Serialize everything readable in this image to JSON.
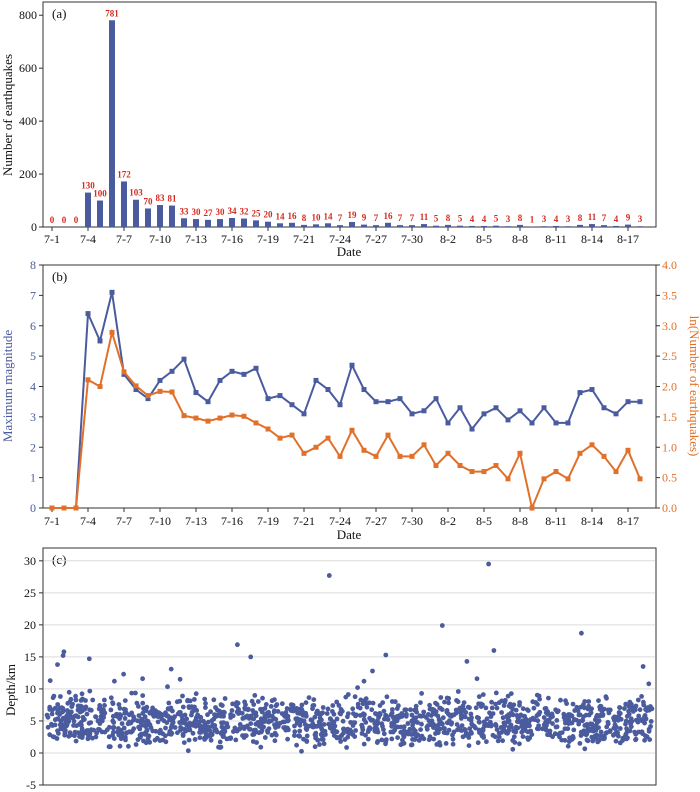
{
  "colors": {
    "blue": "#4a5b9e",
    "orange": "#e0702a",
    "red_label": "#d42a1e",
    "axis": "#333333",
    "text": "#111111"
  },
  "date_ticks": [
    "7-1",
    "7-4",
    "7-7",
    "7-10",
    "7-13",
    "7-16",
    "7-19",
    "7-21",
    "7-24",
    "7-27",
    "7-30",
    "8-2",
    "8-5",
    "8-8",
    "8-11",
    "8-14",
    "8-17"
  ],
  "chart_data": [
    {
      "type": "bar",
      "panel_label": "(a)",
      "title": "",
      "xlabel": "Date",
      "ylabel": "Number of earthquakes",
      "ylim": [
        0,
        850
      ],
      "yticks": [
        "0",
        "200",
        "400",
        "600",
        "800"
      ],
      "values": [
        0,
        0,
        0,
        130,
        100,
        781,
        172,
        103,
        70,
        83,
        81,
        33,
        30,
        27,
        30,
        34,
        32,
        25,
        20,
        14,
        16,
        8,
        10,
        14,
        7,
        19,
        9,
        7,
        16,
        7,
        7,
        11,
        5,
        8,
        5,
        4,
        4,
        5,
        3,
        8,
        1,
        3,
        4,
        3,
        8,
        11,
        7,
        4,
        9,
        3
      ],
      "data_labels": [
        "0",
        "0",
        "0",
        "130",
        "100",
        "781",
        "172",
        "103",
        "70",
        "83",
        "81",
        "33",
        "30",
        "27",
        "30",
        "34",
        "32",
        "25",
        "20",
        "14",
        "16",
        "8",
        "10",
        "14",
        "7",
        "19",
        "9",
        "7",
        "16",
        "7",
        "7",
        "11",
        "5",
        "8",
        "5",
        "4",
        "4",
        "5",
        "3",
        "8",
        "1",
        "3",
        "4",
        "3",
        "8",
        "11",
        "7",
        "4",
        "9",
        "3"
      ]
    },
    {
      "type": "line",
      "panel_label": "(b)",
      "xlabel": "Date",
      "ylabel_left": "Maximum magnitude",
      "ylabel_right": "ln(Number of earthquakes)",
      "ylim_left": [
        0,
        8
      ],
      "ylim_right": [
        0,
        4
      ],
      "yticks_left": [
        "0",
        "1",
        "2",
        "3",
        "4",
        "5",
        "6",
        "7",
        "8"
      ],
      "yticks_right": [
        "0.0",
        "0.5",
        "1.0",
        "1.5",
        "2.0",
        "2.5",
        "3.0",
        "3.5",
        "4.0"
      ],
      "series": [
        {
          "name": "Maximum magnitude",
          "axis": "left",
          "values": [
            0,
            0,
            0,
            6.4,
            5.5,
            7.1,
            4.4,
            3.9,
            3.6,
            4.2,
            4.5,
            4.9,
            3.8,
            3.5,
            4.2,
            4.5,
            4.4,
            4.6,
            3.6,
            3.7,
            3.4,
            3.1,
            4.2,
            3.9,
            3.4,
            4.7,
            3.9,
            3.5,
            3.5,
            3.6,
            3.1,
            3.2,
            3.6,
            2.8,
            3.3,
            2.6,
            3.1,
            3.3,
            2.9,
            3.2,
            2.8,
            3.3,
            2.8,
            2.8,
            3.8,
            3.9,
            3.3,
            3.1,
            3.5,
            3.5
          ]
        },
        {
          "name": "ln(Number of earthquakes)",
          "axis": "right",
          "values": [
            0,
            0,
            0,
            2.11,
            2.0,
            2.89,
            2.24,
            2.01,
            1.85,
            1.92,
            1.91,
            1.52,
            1.48,
            1.43,
            1.48,
            1.53,
            1.51,
            1.4,
            1.3,
            1.15,
            1.2,
            0.9,
            1.0,
            1.15,
            0.85,
            1.28,
            0.95,
            0.85,
            1.2,
            0.85,
            0.85,
            1.04,
            0.7,
            0.9,
            0.7,
            0.6,
            0.6,
            0.7,
            0.48,
            0.9,
            0,
            0.48,
            0.6,
            0.48,
            0.9,
            1.04,
            0.85,
            0.6,
            0.95,
            0.48
          ]
        }
      ]
    },
    {
      "type": "scatter",
      "panel_label": "(c)",
      "ylabel": "Depth/km",
      "ylim": [
        -5,
        32
      ],
      "yticks": [
        "-5",
        "0",
        "5",
        "10",
        "15",
        "20",
        "25",
        "30"
      ],
      "n_points": 1500,
      "x_range": [
        0,
        1500
      ],
      "bulk_depth_range_km": [
        -0.5,
        11
      ],
      "outliers": [
        {
          "x": 8,
          "y": 11.3
        },
        {
          "x": 26,
          "y": 13.8
        },
        {
          "x": 40,
          "y": 15.2
        },
        {
          "x": 42,
          "y": 15.8
        },
        {
          "x": 105,
          "y": 14.7
        },
        {
          "x": 167,
          "y": 11.2
        },
        {
          "x": 190,
          "y": 12.3
        },
        {
          "x": 237,
          "y": 11.6
        },
        {
          "x": 308,
          "y": 13.1
        },
        {
          "x": 330,
          "y": 11.5
        },
        {
          "x": 472,
          "y": 16.9
        },
        {
          "x": 505,
          "y": 15.0
        },
        {
          "x": 700,
          "y": 27.7
        },
        {
          "x": 786,
          "y": 11.2
        },
        {
          "x": 807,
          "y": 12.8
        },
        {
          "x": 840,
          "y": 15.3
        },
        {
          "x": 980,
          "y": 19.9
        },
        {
          "x": 1041,
          "y": 14.3
        },
        {
          "x": 1066,
          "y": 11.6
        },
        {
          "x": 1095,
          "y": 29.5
        },
        {
          "x": 1108,
          "y": 16.0
        },
        {
          "x": 1325,
          "y": 18.7
        },
        {
          "x": 1478,
          "y": 13.5
        },
        {
          "x": 1492,
          "y": 10.8
        }
      ]
    }
  ]
}
